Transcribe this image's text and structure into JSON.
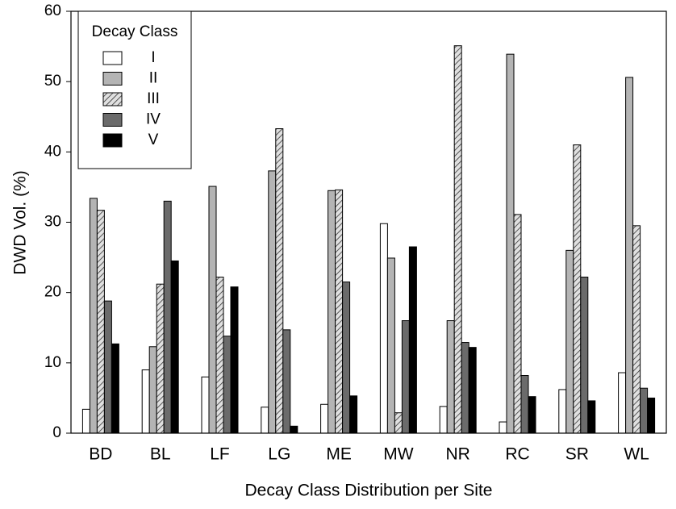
{
  "chart_data": {
    "type": "bar",
    "x_label": "Decay Class Distribution per Site",
    "y_label": "DWD Vol. (%)",
    "legend_title": "Decay Class",
    "legend_position": "upper left",
    "categories": [
      "BD",
      "BL",
      "LF",
      "LG",
      "ME",
      "MW",
      "NR",
      "RC",
      "SR",
      "WL"
    ],
    "series": [
      {
        "name": "I",
        "color": "#ffffff",
        "values": [
          3.4,
          9.0,
          8.0,
          3.7,
          4.1,
          29.8,
          3.8,
          1.6,
          6.2,
          8.6
        ]
      },
      {
        "name": "II",
        "color": "#b4b4b4",
        "values": [
          33.4,
          12.3,
          35.1,
          37.3,
          34.5,
          24.9,
          16.0,
          53.9,
          26.0,
          50.6
        ]
      },
      {
        "name": "III",
        "color": "#d9d9d9",
        "hatch": true,
        "values": [
          31.7,
          21.2,
          22.2,
          43.3,
          34.6,
          2.9,
          55.1,
          31.1,
          41.0,
          29.5
        ]
      },
      {
        "name": "IV",
        "color": "#6b6b6b",
        "values": [
          18.8,
          33.0,
          13.8,
          14.7,
          21.5,
          16.0,
          12.9,
          8.2,
          22.2,
          6.4
        ]
      },
      {
        "name": "V",
        "color": "#000000",
        "values": [
          12.7,
          24.5,
          20.8,
          1.0,
          5.3,
          26.5,
          12.2,
          5.2,
          4.6,
          5.0
        ]
      }
    ],
    "ylim": [
      0,
      60
    ],
    "yticks": [
      0,
      10,
      20,
      30,
      40,
      50,
      60
    ],
    "grid": false
  }
}
